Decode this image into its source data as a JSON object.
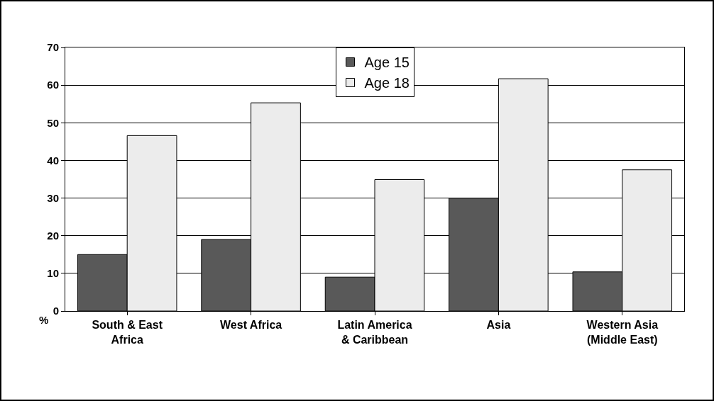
{
  "chart_data": {
    "type": "bar",
    "ylabel": "%",
    "categories": [
      "South & East Africa",
      "West Africa",
      "Latin America & Caribbean",
      "Asia",
      "Western Asia (Middle East)"
    ],
    "series": [
      {
        "name": "Age 15",
        "color": "#595959",
        "values": [
          15,
          19,
          9,
          30,
          10.4
        ]
      },
      {
        "name": "Age 18",
        "color": "#ececec",
        "values": [
          46.6,
          55.3,
          34.9,
          61.7,
          37.5
        ]
      }
    ],
    "ylim": [
      0,
      70
    ],
    "yticks": [
      0,
      10,
      20,
      30,
      40,
      50,
      60,
      70
    ],
    "grid": "y",
    "legend": "top"
  }
}
